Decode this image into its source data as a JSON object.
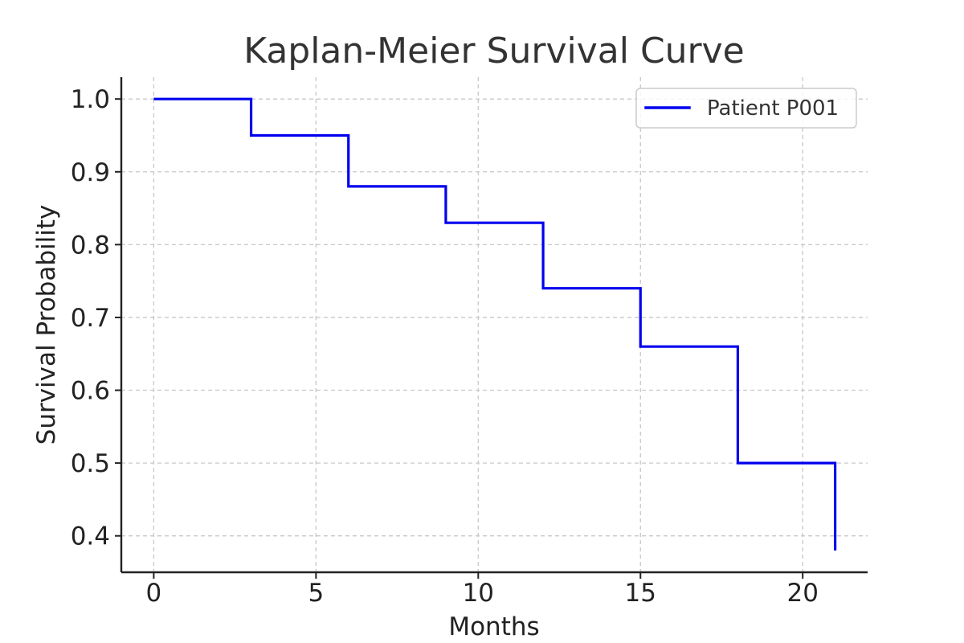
{
  "chart_data": {
    "type": "line",
    "title": "Kaplan-Meier Survival Curve",
    "xlabel": "Months",
    "ylabel": "Survival Probability",
    "xlim": [
      -1,
      22
    ],
    "ylim": [
      0.35,
      1.03
    ],
    "x_ticks": [
      0,
      5,
      10,
      15,
      20
    ],
    "x_tick_labels": [
      "0",
      "5",
      "10",
      "15",
      "20"
    ],
    "y_ticks": [
      0.4,
      0.5,
      0.6,
      0.7,
      0.8,
      0.9,
      1.0
    ],
    "y_tick_labels": [
      "0.4",
      "0.5",
      "0.6",
      "0.7",
      "0.8",
      "0.9",
      "1.0"
    ],
    "grid": true,
    "legend_position": "top-right",
    "series": [
      {
        "name": "Patient P001",
        "color": "#0000ee",
        "step": "post",
        "x": [
          0,
          3,
          6,
          9,
          12,
          15,
          18,
          21
        ],
        "y": [
          1.0,
          0.95,
          0.88,
          0.83,
          0.74,
          0.66,
          0.5,
          0.38
        ]
      }
    ]
  }
}
